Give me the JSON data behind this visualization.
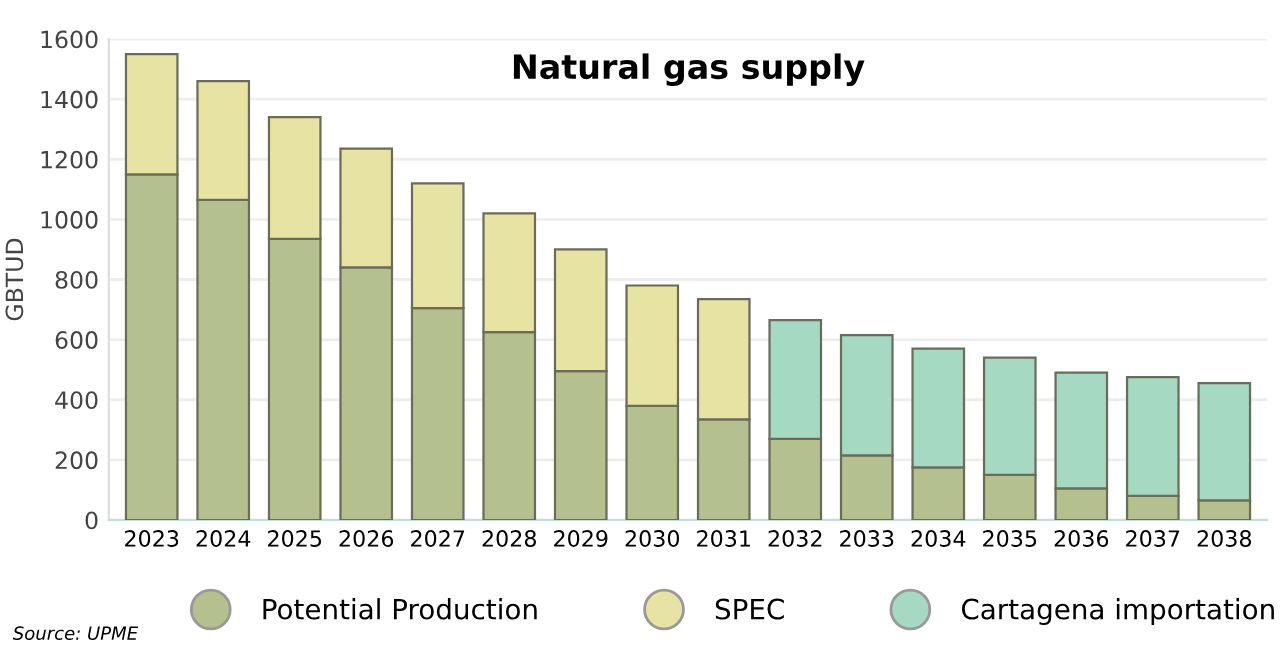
{
  "chart_data": {
    "type": "bar",
    "stacked": true,
    "title": "Natural gas supply",
    "ylabel": "GBTUD",
    "categories": [
      "2023",
      "2024",
      "2025",
      "2026",
      "2027",
      "2028",
      "2029",
      "2030",
      "2031",
      "2032",
      "2033",
      "2034",
      "2035",
      "2036",
      "2037",
      "2038"
    ],
    "series": [
      {
        "name": "Potential Production",
        "color": "#b5c08f",
        "values": [
          1150,
          1065,
          935,
          840,
          705,
          625,
          495,
          380,
          335,
          270,
          215,
          175,
          150,
          105,
          80,
          65
        ]
      },
      {
        "name": "SPEC",
        "color": "#e6e3a3",
        "values": [
          400,
          395,
          405,
          395,
          415,
          395,
          405,
          400,
          400,
          null,
          null,
          null,
          null,
          null,
          null,
          null
        ]
      },
      {
        "name": "Cartagena importation",
        "color": "#a6d9c2",
        "values": [
          null,
          null,
          null,
          null,
          null,
          null,
          null,
          null,
          null,
          395,
          400,
          395,
          390,
          385,
          395,
          390
        ]
      }
    ],
    "ylim": [
      0,
      1600
    ],
    "yticks": [
      0,
      200,
      400,
      600,
      800,
      1000,
      1200,
      1400,
      1600
    ],
    "grid": "y",
    "legend": "bottom",
    "annotations": [
      "Source: UPME"
    ]
  }
}
